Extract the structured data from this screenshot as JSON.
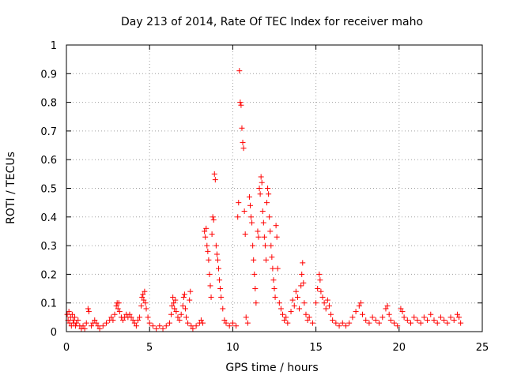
{
  "chart_data": {
    "type": "scatter",
    "title": "Day 213 of 2014, Rate Of TEC Index for receiver maho",
    "xlabel": "GPS time / hours",
    "ylabel": "ROTI / TECUs",
    "xlim": [
      0,
      25
    ],
    "ylim": [
      0,
      1
    ],
    "xticks": [
      0,
      5,
      10,
      15,
      20,
      25
    ],
    "xtick_labels": [
      "0",
      "5",
      "10",
      "15",
      "20",
      "25"
    ],
    "yticks": [
      0,
      0.1,
      0.2,
      0.3,
      0.4,
      0.5,
      0.6,
      0.7,
      0.8,
      0.9,
      1
    ],
    "ytick_labels": [
      "0",
      "0.1",
      "0.2",
      "0.3",
      "0.4",
      "0.5",
      "0.6",
      "0.7",
      "0.8",
      "0.9",
      "1"
    ],
    "grid": true,
    "marker": "+",
    "color": "#ff0000",
    "series": [
      {
        "points": [
          [
            0.05,
            0.06
          ],
          [
            0.1,
            0.04
          ],
          [
            0.15,
            0.07
          ],
          [
            0.2,
            0.03
          ],
          [
            0.25,
            0.05
          ],
          [
            0.3,
            0.02
          ],
          [
            0.35,
            0.06
          ],
          [
            0.4,
            0.04
          ],
          [
            0.45,
            0.03
          ],
          [
            0.5,
            0.05
          ],
          [
            0.55,
            0.02
          ],
          [
            0.6,
            0.03
          ],
          [
            0.7,
            0.04
          ],
          [
            0.8,
            0.02
          ],
          [
            0.9,
            0.01
          ],
          [
            1.0,
            0.02
          ],
          [
            1.1,
            0.01
          ],
          [
            1.2,
            0.03
          ],
          [
            1.3,
            0.08
          ],
          [
            1.35,
            0.07
          ],
          [
            1.5,
            0.02
          ],
          [
            1.6,
            0.03
          ],
          [
            1.7,
            0.04
          ],
          [
            1.8,
            0.03
          ],
          [
            1.9,
            0.02
          ],
          [
            2.0,
            0.01
          ],
          [
            2.2,
            0.02
          ],
          [
            2.4,
            0.03
          ],
          [
            2.6,
            0.04
          ],
          [
            2.7,
            0.05
          ],
          [
            2.8,
            0.04
          ],
          [
            2.9,
            0.06
          ],
          [
            3.0,
            0.09
          ],
          [
            3.05,
            0.1
          ],
          [
            3.1,
            0.08
          ],
          [
            3.15,
            0.1
          ],
          [
            3.2,
            0.07
          ],
          [
            3.3,
            0.05
          ],
          [
            3.4,
            0.04
          ],
          [
            3.5,
            0.05
          ],
          [
            3.6,
            0.06
          ],
          [
            3.7,
            0.05
          ],
          [
            3.8,
            0.06
          ],
          [
            3.9,
            0.05
          ],
          [
            4.0,
            0.04
          ],
          [
            4.1,
            0.03
          ],
          [
            4.2,
            0.02
          ],
          [
            4.3,
            0.04
          ],
          [
            4.4,
            0.05
          ],
          [
            4.5,
            0.09
          ],
          [
            4.55,
            0.12
          ],
          [
            4.6,
            0.13
          ],
          [
            4.65,
            0.11
          ],
          [
            4.7,
            0.14
          ],
          [
            4.75,
            0.1
          ],
          [
            4.8,
            0.08
          ],
          [
            4.9,
            0.05
          ],
          [
            5.0,
            0.03
          ],
          [
            5.2,
            0.02
          ],
          [
            5.4,
            0.01
          ],
          [
            5.6,
            0.02
          ],
          [
            5.8,
            0.01
          ],
          [
            6.0,
            0.02
          ],
          [
            6.2,
            0.03
          ],
          [
            6.3,
            0.06
          ],
          [
            6.35,
            0.09
          ],
          [
            6.4,
            0.12
          ],
          [
            6.45,
            0.1
          ],
          [
            6.5,
            0.08
          ],
          [
            6.55,
            0.11
          ],
          [
            6.6,
            0.07
          ],
          [
            6.7,
            0.05
          ],
          [
            6.8,
            0.04
          ],
          [
            6.9,
            0.06
          ],
          [
            7.0,
            0.09
          ],
          [
            7.05,
            0.12
          ],
          [
            7.1,
            0.13
          ],
          [
            7.15,
            0.08
          ],
          [
            7.2,
            0.05
          ],
          [
            7.3,
            0.03
          ],
          [
            7.4,
            0.11
          ],
          [
            7.45,
            0.14
          ],
          [
            7.5,
            0.02
          ],
          [
            7.6,
            0.01
          ],
          [
            7.8,
            0.02
          ],
          [
            8.0,
            0.03
          ],
          [
            8.1,
            0.04
          ],
          [
            8.2,
            0.03
          ],
          [
            8.3,
            0.35
          ],
          [
            8.35,
            0.33
          ],
          [
            8.4,
            0.36
          ],
          [
            8.45,
            0.3
          ],
          [
            8.5,
            0.28
          ],
          [
            8.55,
            0.25
          ],
          [
            8.6,
            0.2
          ],
          [
            8.65,
            0.16
          ],
          [
            8.7,
            0.12
          ],
          [
            8.75,
            0.34
          ],
          [
            8.8,
            0.4
          ],
          [
            8.85,
            0.39
          ],
          [
            8.9,
            0.55
          ],
          [
            8.95,
            0.53
          ],
          [
            9.0,
            0.3
          ],
          [
            9.05,
            0.27
          ],
          [
            9.1,
            0.25
          ],
          [
            9.15,
            0.22
          ],
          [
            9.2,
            0.18
          ],
          [
            9.25,
            0.15
          ],
          [
            9.3,
            0.12
          ],
          [
            9.4,
            0.08
          ],
          [
            9.5,
            0.04
          ],
          [
            9.6,
            0.03
          ],
          [
            9.8,
            0.02
          ],
          [
            10.0,
            0.03
          ],
          [
            10.2,
            0.02
          ],
          [
            10.3,
            0.4
          ],
          [
            10.35,
            0.45
          ],
          [
            10.4,
            0.91
          ],
          [
            10.45,
            0.8
          ],
          [
            10.5,
            0.79
          ],
          [
            10.55,
            0.71
          ],
          [
            10.6,
            0.66
          ],
          [
            10.65,
            0.64
          ],
          [
            10.7,
            0.42
          ],
          [
            10.75,
            0.34
          ],
          [
            10.8,
            0.05
          ],
          [
            10.9,
            0.03
          ],
          [
            11.0,
            0.47
          ],
          [
            11.05,
            0.44
          ],
          [
            11.1,
            0.4
          ],
          [
            11.15,
            0.38
          ],
          [
            11.2,
            0.3
          ],
          [
            11.25,
            0.25
          ],
          [
            11.3,
            0.2
          ],
          [
            11.35,
            0.15
          ],
          [
            11.4,
            0.1
          ],
          [
            11.5,
            0.35
          ],
          [
            11.55,
            0.33
          ],
          [
            11.6,
            0.5
          ],
          [
            11.65,
            0.48
          ],
          [
            11.7,
            0.54
          ],
          [
            11.75,
            0.52
          ],
          [
            11.8,
            0.42
          ],
          [
            11.85,
            0.38
          ],
          [
            11.9,
            0.33
          ],
          [
            11.95,
            0.3
          ],
          [
            12.0,
            0.25
          ],
          [
            12.05,
            0.45
          ],
          [
            12.1,
            0.5
          ],
          [
            12.15,
            0.48
          ],
          [
            12.2,
            0.4
          ],
          [
            12.25,
            0.35
          ],
          [
            12.3,
            0.3
          ],
          [
            12.35,
            0.26
          ],
          [
            12.4,
            0.22
          ],
          [
            12.45,
            0.18
          ],
          [
            12.5,
            0.15
          ],
          [
            12.55,
            0.12
          ],
          [
            12.6,
            0.37
          ],
          [
            12.65,
            0.33
          ],
          [
            12.7,
            0.22
          ],
          [
            12.8,
            0.1
          ],
          [
            12.9,
            0.08
          ],
          [
            13.0,
            0.06
          ],
          [
            13.1,
            0.04
          ],
          [
            13.2,
            0.05
          ],
          [
            13.3,
            0.03
          ],
          [
            13.5,
            0.07
          ],
          [
            13.6,
            0.11
          ],
          [
            13.7,
            0.09
          ],
          [
            13.8,
            0.14
          ],
          [
            13.9,
            0.12
          ],
          [
            14.0,
            0.08
          ],
          [
            14.1,
            0.16
          ],
          [
            14.15,
            0.2
          ],
          [
            14.2,
            0.24
          ],
          [
            14.25,
            0.17
          ],
          [
            14.3,
            0.1
          ],
          [
            14.4,
            0.06
          ],
          [
            14.5,
            0.04
          ],
          [
            14.6,
            0.05
          ],
          [
            14.8,
            0.03
          ],
          [
            15.0,
            0.1
          ],
          [
            15.1,
            0.15
          ],
          [
            15.2,
            0.2
          ],
          [
            15.25,
            0.18
          ],
          [
            15.3,
            0.14
          ],
          [
            15.4,
            0.12
          ],
          [
            15.5,
            0.1
          ],
          [
            15.6,
            0.08
          ],
          [
            15.7,
            0.11
          ],
          [
            15.8,
            0.09
          ],
          [
            15.9,
            0.06
          ],
          [
            16.0,
            0.04
          ],
          [
            16.2,
            0.03
          ],
          [
            16.4,
            0.02
          ],
          [
            16.6,
            0.03
          ],
          [
            16.8,
            0.02
          ],
          [
            17.0,
            0.03
          ],
          [
            17.2,
            0.05
          ],
          [
            17.4,
            0.07
          ],
          [
            17.6,
            0.09
          ],
          [
            17.7,
            0.1
          ],
          [
            17.8,
            0.06
          ],
          [
            18.0,
            0.04
          ],
          [
            18.2,
            0.03
          ],
          [
            18.4,
            0.05
          ],
          [
            18.6,
            0.04
          ],
          [
            18.8,
            0.03
          ],
          [
            19.0,
            0.05
          ],
          [
            19.2,
            0.08
          ],
          [
            19.3,
            0.09
          ],
          [
            19.4,
            0.06
          ],
          [
            19.5,
            0.04
          ],
          [
            19.7,
            0.03
          ],
          [
            19.9,
            0.02
          ],
          [
            20.1,
            0.08
          ],
          [
            20.2,
            0.07
          ],
          [
            20.3,
            0.05
          ],
          [
            20.5,
            0.04
          ],
          [
            20.7,
            0.03
          ],
          [
            20.9,
            0.05
          ],
          [
            21.1,
            0.04
          ],
          [
            21.3,
            0.03
          ],
          [
            21.5,
            0.05
          ],
          [
            21.7,
            0.04
          ],
          [
            21.9,
            0.06
          ],
          [
            22.1,
            0.04
          ],
          [
            22.3,
            0.03
          ],
          [
            22.5,
            0.05
          ],
          [
            22.7,
            0.04
          ],
          [
            22.9,
            0.03
          ],
          [
            23.1,
            0.05
          ],
          [
            23.3,
            0.04
          ],
          [
            23.5,
            0.06
          ],
          [
            23.6,
            0.05
          ],
          [
            23.7,
            0.03
          ]
        ]
      }
    ]
  }
}
